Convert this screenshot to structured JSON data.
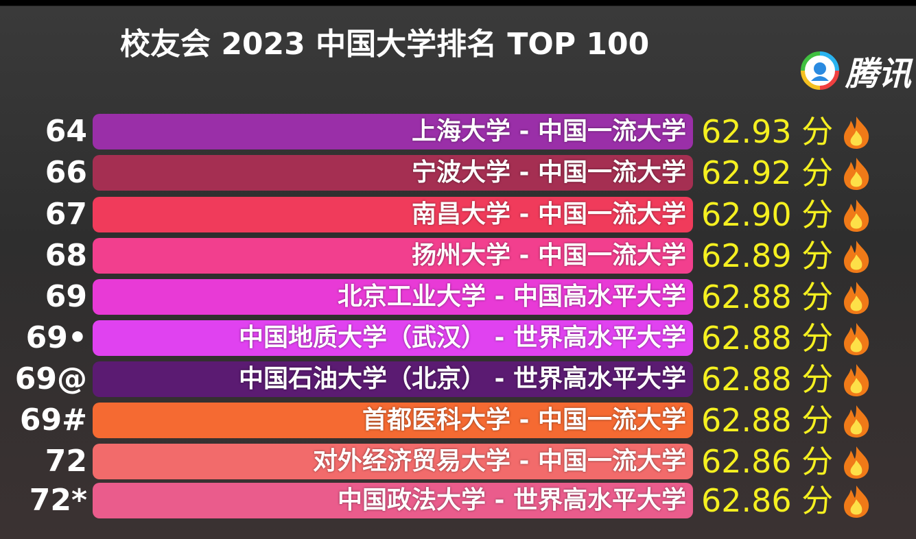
{
  "header": {
    "title": "校友会 2023 中国大学排名 TOP 100",
    "logo": "腾讯"
  },
  "rows": [
    {
      "rank": "64",
      "name": "上海大学 - 中国一流大学",
      "score": "62.93 分",
      "color": "#9a2fa8"
    },
    {
      "rank": "66",
      "name": "宁波大学 - 中国一流大学",
      "score": "62.92 分",
      "color": "#a52f52"
    },
    {
      "rank": "67",
      "name": "南昌大学 - 中国一流大学",
      "score": "62.90 分",
      "color": "#f03b5b"
    },
    {
      "rank": "68",
      "name": "扬州大学 - 中国一流大学",
      "score": "62.89 分",
      "color": "#f23f8e"
    },
    {
      "rank": "69",
      "name": "北京工业大学 - 中国高水平大学",
      "score": "62.88 分",
      "color": "#e83ad6"
    },
    {
      "rank": "69•",
      "name": "中国地质大学（武汉） - 世界高水平大学",
      "score": "62.88 分",
      "color": "#e042f0"
    },
    {
      "rank": "69@",
      "name": "中国石油大学（北京） - 世界高水平大学",
      "score": "62.88 分",
      "color": "#5b1b72"
    },
    {
      "rank": "69#",
      "name": "首都医科大学 - 中国一流大学",
      "score": "62.88 分",
      "color": "#f56a32"
    },
    {
      "rank": "72",
      "name": "对外经济贸易大学 - 中国一流大学",
      "score": "62.86 分",
      "color": "#f26b6b"
    },
    {
      "rank": "72*",
      "name": "中国政法大学 - 世界高水平大学",
      "score": "62.86 分",
      "color": "#ea5c8c"
    }
  ]
}
